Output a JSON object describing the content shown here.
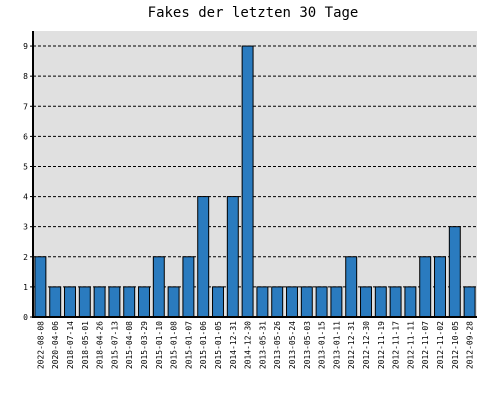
{
  "chart_data": {
    "type": "bar",
    "title": "Fakes der letzten 30 Tage",
    "xlabel": "",
    "ylabel": "",
    "ylim": [
      0,
      9.5
    ],
    "yticks": [
      0,
      1,
      2,
      3,
      4,
      5,
      6,
      7,
      8,
      9
    ],
    "grid": true,
    "legend": "none",
    "categories": [
      "2022-08-08",
      "2020-04-06",
      "2018-07-14",
      "2018-05-01",
      "2018-04-26",
      "2015-07-13",
      "2015-04-08",
      "2015-03-29",
      "2015-01-10",
      "2015-01-08",
      "2015-01-07",
      "2015-01-06",
      "2015-01-05",
      "2014-12-31",
      "2014-12-30",
      "2013-05-31",
      "2013-05-26",
      "2013-05-24",
      "2013-05-03",
      "2013-01-15",
      "2013-01-11",
      "2012-12-31",
      "2012-12-30",
      "2012-11-19",
      "2012-11-17",
      "2012-11-11",
      "2012-11-07",
      "2012-11-02",
      "2012-10-05",
      "2012-09-28"
    ],
    "values": [
      2,
      1,
      1,
      1,
      1,
      1,
      1,
      1,
      2,
      1,
      2,
      4,
      1,
      4,
      9,
      1,
      1,
      1,
      1,
      1,
      1,
      2,
      1,
      1,
      1,
      1,
      2,
      2,
      3,
      1
    ]
  },
  "colors": {
    "bar_fill": "#2a7bbf",
    "bar_stroke": "#000000",
    "plot_background": "#e0e0e0",
    "grid": "#000000",
    "axis": "#000000"
  }
}
